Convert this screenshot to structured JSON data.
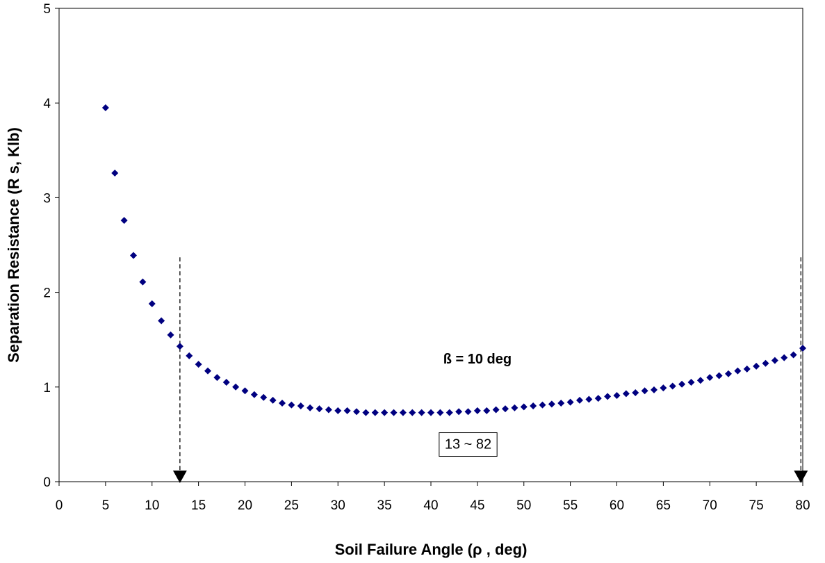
{
  "chart_data": {
    "type": "scatter",
    "title": "",
    "xlabel": "Soil Failure Angle (ρ , deg)",
    "ylabel": "Separation Resistance (R s, Klb)",
    "xlim": [
      0,
      80
    ],
    "ylim": [
      0,
      5
    ],
    "xticks": [
      "0",
      "5",
      "10",
      "15",
      "20",
      "25",
      "30",
      "35",
      "40",
      "45",
      "50",
      "55",
      "60",
      "65",
      "70",
      "75",
      "80"
    ],
    "yticks": [
      "0",
      "1",
      "2",
      "3",
      "4",
      "5"
    ],
    "grid": false,
    "legend": "none",
    "marker_color": "#000080",
    "series": [
      {
        "x": [
          5,
          6,
          7,
          8,
          9,
          10,
          11,
          12,
          13,
          14,
          15,
          16,
          17,
          18,
          19,
          20,
          21,
          22,
          23,
          24,
          25,
          26,
          27,
          28,
          29,
          30,
          31,
          32,
          33,
          34,
          35,
          36,
          37,
          38,
          39,
          40,
          41,
          42,
          43,
          44,
          45,
          46,
          47,
          48,
          49,
          50,
          51,
          52,
          53,
          54,
          55,
          56,
          57,
          58,
          59,
          60,
          61,
          62,
          63,
          64,
          65,
          66,
          67,
          68,
          69,
          70,
          71,
          72,
          73,
          74,
          75,
          76,
          77,
          78,
          79,
          80
        ],
        "y": [
          3.95,
          3.26,
          2.76,
          2.39,
          2.11,
          1.88,
          1.7,
          1.55,
          1.43,
          1.33,
          1.24,
          1.17,
          1.1,
          1.05,
          1.0,
          0.96,
          0.92,
          0.89,
          0.86,
          0.83,
          0.81,
          0.8,
          0.78,
          0.77,
          0.76,
          0.75,
          0.75,
          0.74,
          0.73,
          0.73,
          0.73,
          0.73,
          0.73,
          0.73,
          0.73,
          0.73,
          0.73,
          0.73,
          0.74,
          0.74,
          0.75,
          0.75,
          0.76,
          0.77,
          0.78,
          0.79,
          0.8,
          0.81,
          0.82,
          0.83,
          0.84,
          0.86,
          0.87,
          0.88,
          0.9,
          0.91,
          0.93,
          0.94,
          0.96,
          0.97,
          0.99,
          1.01,
          1.03,
          1.05,
          1.07,
          1.1,
          1.12,
          1.14,
          1.17,
          1.19,
          1.22,
          1.25,
          1.28,
          1.31,
          1.34,
          1.41
        ]
      }
    ],
    "annotations": {
      "beta_label": "ß = 10 deg",
      "range_label": "13 ~ 82",
      "beta_at": [
        45,
        1.3
      ],
      "range_box_at": [
        44,
        0.4
      ],
      "markers": [
        {
          "x": 13,
          "y_top": 2.37
        },
        {
          "x": 79.8,
          "y_top": 2.37
        }
      ]
    }
  }
}
